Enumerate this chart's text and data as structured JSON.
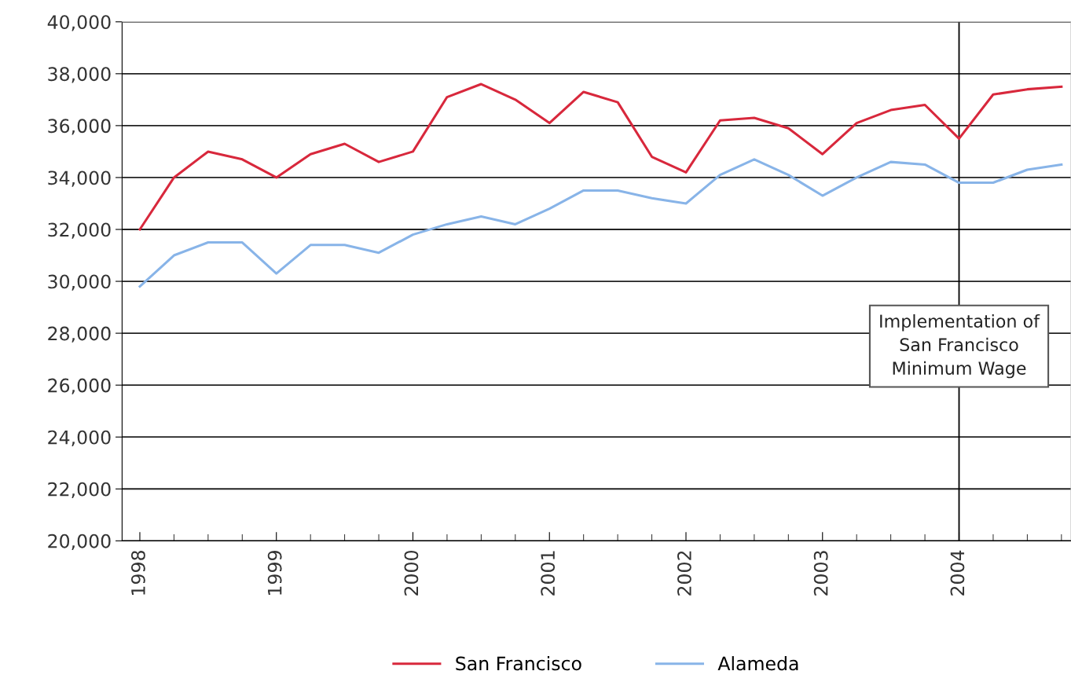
{
  "chart_data": {
    "type": "line",
    "x": [
      1998.0,
      1998.25,
      1998.5,
      1998.75,
      1999.0,
      1999.25,
      1999.5,
      1999.75,
      2000.0,
      2000.25,
      2000.5,
      2000.75,
      2001.0,
      2001.25,
      2001.5,
      2001.75,
      2002.0,
      2002.25,
      2002.5,
      2002.75,
      2003.0,
      2003.25,
      2003.5,
      2003.75,
      2004.0,
      2004.25,
      2004.5,
      2004.75
    ],
    "series": [
      {
        "name": "San Francisco",
        "color": "#d8283c",
        "values": [
          32000,
          34000,
          35000,
          34700,
          34000,
          34900,
          35300,
          34600,
          35000,
          37100,
          37600,
          37000,
          36100,
          37300,
          36900,
          34800,
          34200,
          36200,
          36300,
          35900,
          34900,
          36100,
          36600,
          36800,
          35500,
          37200,
          37400,
          37500
        ]
      },
      {
        "name": "Alameda",
        "color": "#88b4e8",
        "values": [
          29800,
          31000,
          31500,
          31500,
          30300,
          31400,
          31400,
          31100,
          31800,
          32200,
          32500,
          32200,
          32800,
          33500,
          33500,
          33200,
          33000,
          34100,
          34700,
          34100,
          33300,
          34000,
          34600,
          34500,
          33800,
          33800,
          34300,
          34500
        ]
      }
    ],
    "xlim": [
      1997.87,
      2004.82
    ],
    "xticks": [
      1998,
      1999,
      2000,
      2001,
      2002,
      2003,
      2004
    ],
    "ylim": [
      20000,
      40000
    ],
    "yticks": [
      {
        "value": 20000,
        "label": "20,000"
      },
      {
        "value": 22000,
        "label": "22,000"
      },
      {
        "value": 24000,
        "label": "24,000"
      },
      {
        "value": 26000,
        "label": "26,000"
      },
      {
        "value": 28000,
        "label": "28,000"
      },
      {
        "value": 30000,
        "label": "30,000"
      },
      {
        "value": 32000,
        "label": "32,000"
      },
      {
        "value": 34000,
        "label": "34,000"
      },
      {
        "value": 36000,
        "label": "36,000"
      },
      {
        "value": 38000,
        "label": "38,000"
      },
      {
        "value": 40000,
        "label": "40,000"
      }
    ],
    "ref_lines": [
      {
        "axis": "x",
        "value": 2004,
        "label": "Implementation of\nSan Francisco\nMinimum Wage",
        "color": "#000000"
      }
    ],
    "grid": "y",
    "legend": "bottom",
    "marker": "none",
    "line_style": "solid"
  }
}
